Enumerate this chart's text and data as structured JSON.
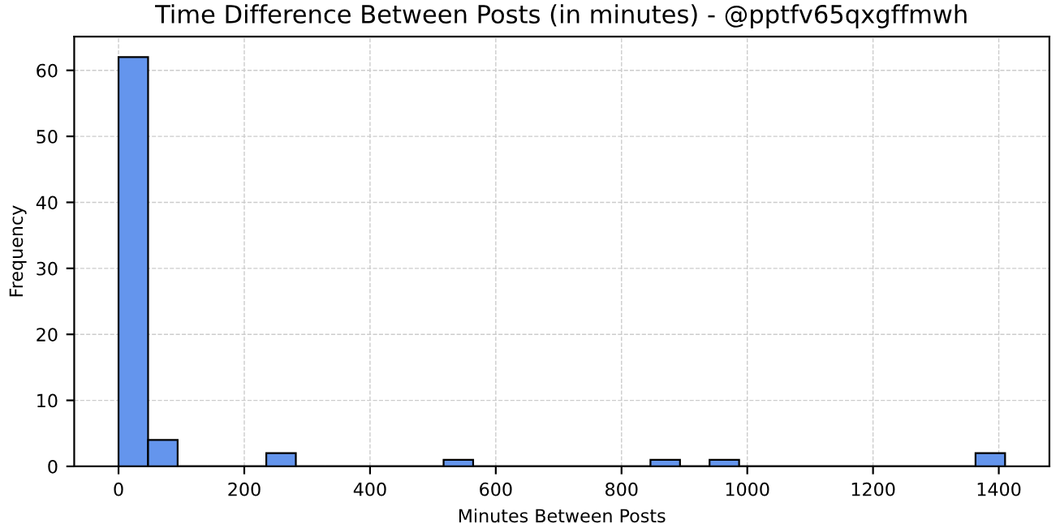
{
  "chart_data": {
    "type": "histogram",
    "title": "Time Difference Between Posts (in minutes) - @pptfv65qxgffmwh",
    "xlabel": "Minutes Between Posts",
    "ylabel": "Frequency",
    "bins": [
      0,
      47,
      94,
      141,
      188,
      235,
      282,
      329,
      376,
      423,
      470,
      517,
      564,
      611,
      658,
      705,
      752,
      799,
      846,
      893,
      940,
      987,
      1034,
      1081,
      1128,
      1175,
      1222,
      1269,
      1316,
      1363,
      1410
    ],
    "values": [
      62,
      4,
      0,
      0,
      0,
      2,
      0,
      0,
      0,
      0,
      0,
      1,
      0,
      0,
      0,
      0,
      0,
      0,
      1,
      0,
      1,
      0,
      0,
      0,
      0,
      0,
      0,
      0,
      0,
      2
    ],
    "color": "#6495ed",
    "xlim": [
      -70.5,
      1480.5
    ],
    "ylim": [
      0,
      65.1
    ],
    "xticks": [
      0,
      200,
      400,
      600,
      800,
      1000,
      1200,
      1400
    ],
    "yticks": [
      0,
      10,
      20,
      30,
      40,
      50,
      60
    ],
    "grid": true
  }
}
